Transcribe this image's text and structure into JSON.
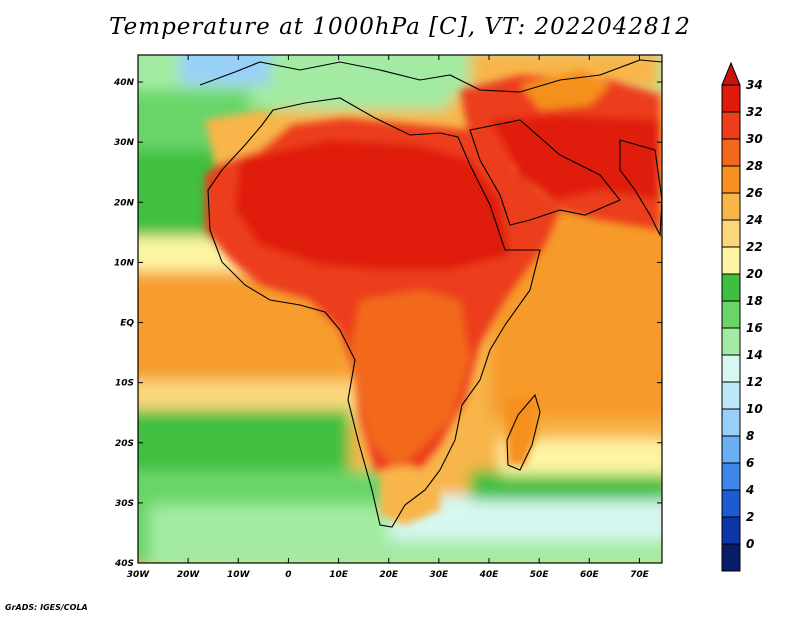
{
  "title": "Temperature at 1000hPa [C], VT: 2022042812",
  "credit": "GrADS: IGES/COLA",
  "map": {
    "region": "Africa and surrounding seas",
    "lon_labels": [
      "30W",
      "20W",
      "10W",
      "0",
      "10E",
      "20E",
      "30E",
      "40E",
      "50E",
      "60E",
      "70E"
    ],
    "lat_labels": [
      "40N",
      "30N",
      "20N",
      "10N",
      "EQ",
      "10S",
      "20S",
      "30S",
      "40S"
    ]
  },
  "colorbar": {
    "labels": [
      "34",
      "32",
      "30",
      "28",
      "26",
      "24",
      "22",
      "20",
      "18",
      "16",
      "14",
      "12",
      "10",
      "8",
      "6",
      "4",
      "2",
      "0"
    ],
    "colors": [
      "#e01a0c",
      "#ec3d1c",
      "#f2691c",
      "#f5901f",
      "#f8b548",
      "#fbd77c",
      "#fdf5a4",
      "#3fbf3f",
      "#69d569",
      "#a3eba3",
      "#d6f8f0",
      "#bde8fa",
      "#98d0f8",
      "#6aaef3",
      "#3e87e8",
      "#1b5cd2",
      "#0d35a8",
      "#081d6a"
    ],
    "over_color": "#c8140a",
    "under_color": "#d7d3ee"
  }
}
